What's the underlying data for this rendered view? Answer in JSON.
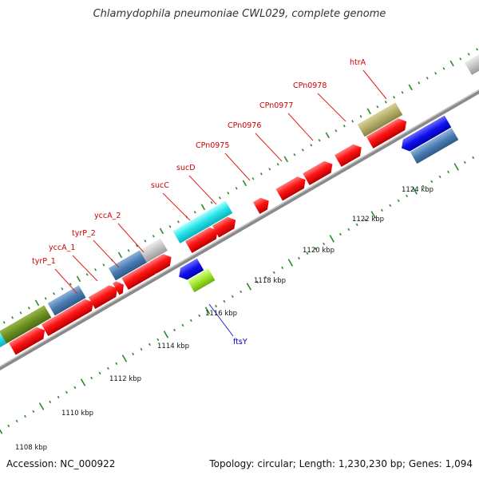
{
  "title": "Chlamydophila pneumoniae CWL029, complete genome",
  "accession": "Accession: NC_000922",
  "summary": "Topology: circular; Length: 1,230,230 bp; Genes: 1,094",
  "ruler_labels": [
    "1108 kbp",
    "1110 kbp",
    "1112 kbp",
    "1114 kbp",
    "1116 kbp",
    "1118 kbp",
    "1120 kbp",
    "1122 kbp",
    "1124 kbp"
  ],
  "forward_gene_labels": [
    "tyrP_1",
    "yccA_1",
    "tyrP_2",
    "yccA_2",
    "sucC",
    "sucD",
    "CPn0975",
    "CPn0976",
    "CPn0977",
    "CPn0978",
    "htrA"
  ],
  "reverse_gene_labels": [
    "ftsY"
  ],
  "colors": {
    "cds": "#ff1a1a",
    "label_forward": "#cc0000",
    "label_reverse": "#0000cc",
    "ticks": "#2a8a2a",
    "backbone": "#8a8a8a"
  }
}
